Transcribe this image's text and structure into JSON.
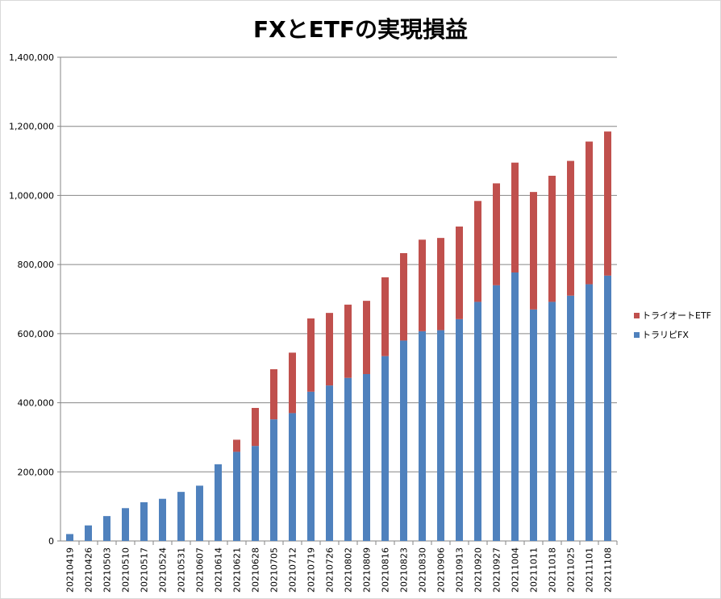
{
  "chart_data": {
    "type": "bar",
    "stacked": true,
    "title": "FXとETFの実現損益",
    "xlabel": "",
    "ylabel": "",
    "ylim": [
      0,
      1400000
    ],
    "yticks": [
      "0",
      "200,000",
      "400,000",
      "600,000",
      "800,000",
      "1,000,000",
      "1,200,000",
      "1,400,000"
    ],
    "grid": true,
    "legend_position": "right",
    "categories": [
      "20210419",
      "20210426",
      "20210503",
      "20210510",
      "20210517",
      "20210524",
      "20210531",
      "20210607",
      "20210614",
      "20210621",
      "20210628",
      "20210705",
      "20210712",
      "20210719",
      "20210726",
      "20210802",
      "20210809",
      "20210816",
      "20210823",
      "20210830",
      "20210906",
      "20210913",
      "20210920",
      "20210927",
      "20211004",
      "20211011",
      "20211018",
      "20211025",
      "20211101",
      "20211108"
    ],
    "series": [
      {
        "name": "トラリピFX",
        "color": "#4f81bd",
        "values": [
          20000,
          45000,
          72000,
          95000,
          112000,
          122000,
          142000,
          160000,
          222000,
          258000,
          275000,
          352000,
          370000,
          432000,
          450000,
          472000,
          483000,
          535000,
          580000,
          607000,
          610000,
          642000,
          692000,
          740000,
          777000,
          670000,
          692000,
          710000,
          743000,
          768000
        ]
      },
      {
        "name": "トライオートETF",
        "color": "#c0504d",
        "values": [
          0,
          0,
          0,
          0,
          0,
          0,
          0,
          0,
          0,
          35000,
          110000,
          145000,
          175000,
          212000,
          210000,
          212000,
          212000,
          228000,
          253000,
          265000,
          267000,
          268000,
          292000,
          295000,
          318000,
          340000,
          365000,
          390000,
          413000,
          417000
        ]
      }
    ]
  }
}
